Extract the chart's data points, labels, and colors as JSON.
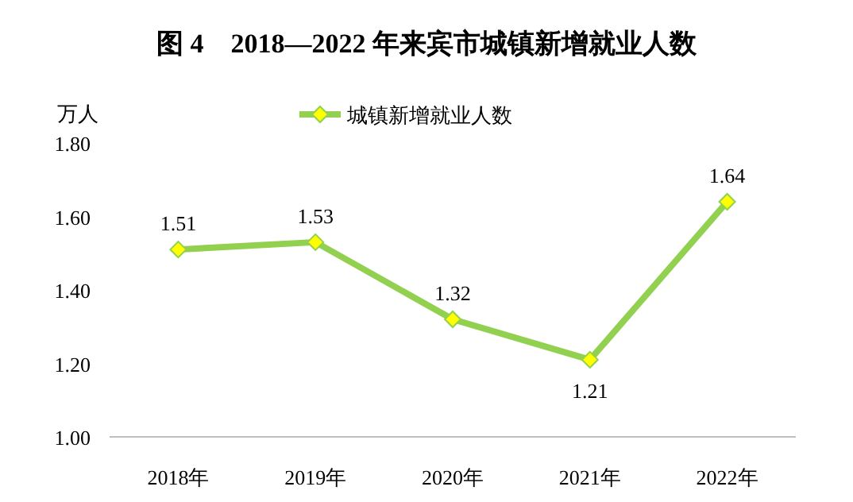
{
  "chart_data": {
    "type": "line",
    "title": "图 4　2018—2022 年来宾市城镇新增就业人数",
    "ylabel": "万人",
    "categories": [
      "2018年",
      "2019年",
      "2020年",
      "2021年",
      "2022年"
    ],
    "series": [
      {
        "name": "城镇新增就业人数",
        "color": "#92d050",
        "values": [
          1.51,
          1.53,
          1.32,
          1.21,
          1.64
        ]
      }
    ],
    "ylim": [
      1.0,
      1.8
    ],
    "yticks": [
      {
        "value": 1.0,
        "label": "1.00"
      },
      {
        "value": 1.2,
        "label": "1.20"
      },
      {
        "value": 1.4,
        "label": "1.40"
      },
      {
        "value": 1.6,
        "label": "1.60"
      },
      {
        "value": 1.8,
        "label": "1.80"
      }
    ],
    "data_labels": true,
    "legend": "top",
    "marker": "diamond"
  }
}
